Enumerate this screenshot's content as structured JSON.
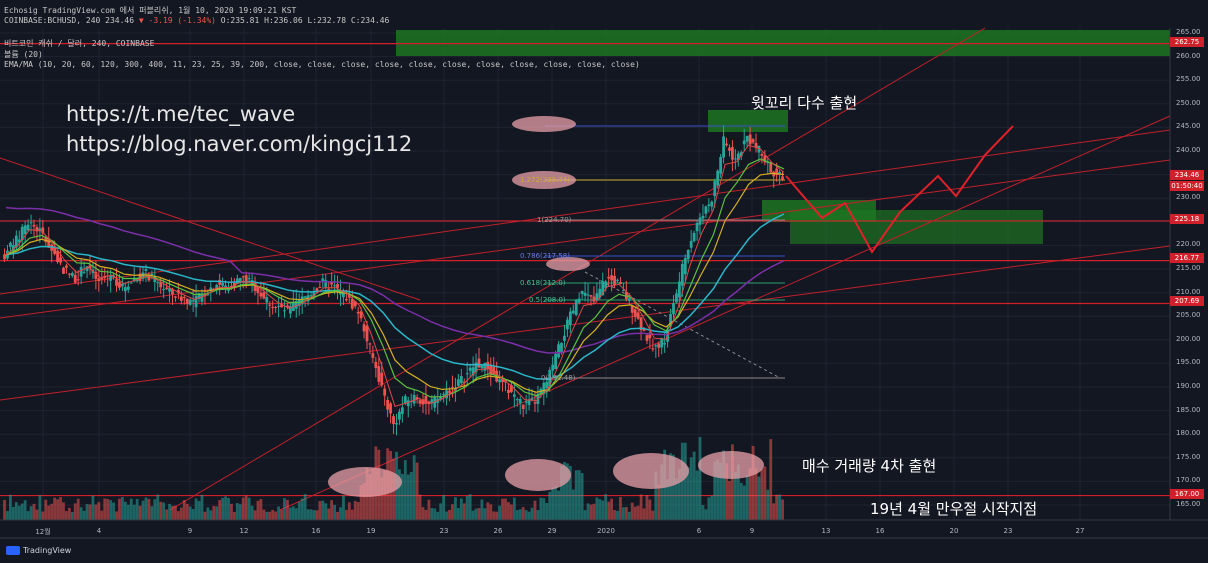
{
  "header": {
    "line1": "Echosig TradingView.com 에서 퍼블리쉬, 1월 10, 2020 19:09:21 KST",
    "symbol": "COINBASE:BCHUSD, 240",
    "last": "234.46",
    "change": "▼ -3.19 (-1.34%)",
    "ohlc": "O:235.81 H:236.06 L:232.78 C:234.46",
    "line2": "비트코인 캐쉬 / 달러, 240, COINBASE",
    "line3": "볼륨 (20)",
    "line4": "EMA/MA (10, 20, 60, 120, 300, 400, 11, 23, 25, 39, 200, close, close, close, close, close, close, close, close, close, close, close)"
  },
  "watermark": {
    "telegram": "https://t.me/tec_wave",
    "blog": "https://blog.naver.com/kingcj112"
  },
  "annotations": {
    "wick": "윗꼬리 다수 출현",
    "volume": "매수 거래량 4차 출현",
    "start": "19년 4월 만우절 시작지점"
  },
  "fib_labels": {
    "f1272": "1.272(233.74)",
    "f1": "1(224.70)",
    "f786": "0.786(217.58)",
    "f618": "0.618(212.0)",
    "f5": "0.5(208.0)",
    "f0": "0(191.48)"
  },
  "price_tags": {
    "p26275": "262.75",
    "p23446": "234.46",
    "time": "01:50:40",
    "p22518": "225.18",
    "p21677": "216.77",
    "p20769": "207.69",
    "p16700": "167.00"
  },
  "colors": {
    "background": "#131722",
    "up": "#26a69a",
    "down": "#ef5350",
    "level": "#d0202a",
    "zone": "#1e7a22"
  },
  "branding": {
    "name": "TradingView"
  },
  "chart_data": {
    "type": "candlestick",
    "symbol": "COINBASE:BCHUSD",
    "timeframe": "240",
    "y_ticks": [
      265,
      260,
      255,
      250,
      245,
      240,
      235,
      230,
      225,
      220,
      215,
      210,
      205,
      200,
      195,
      190,
      185,
      180,
      175,
      170,
      165
    ],
    "ylim": [
      163,
      266
    ],
    "x_ticks": [
      "12월",
      "4",
      "9",
      "12",
      "16",
      "19",
      "23",
      "26",
      "29",
      "2020",
      "6",
      "9",
      "13",
      "16",
      "20",
      "23",
      "27"
    ],
    "horizontal_levels": [
      262.75,
      225.18,
      216.77,
      207.69,
      167.0
    ],
    "fib_levels": [
      {
        "ratio": 1.272,
        "value": 233.74
      },
      {
        "ratio": 1,
        "value": 224.7
      },
      {
        "ratio": 0.786,
        "value": 217.58
      },
      {
        "ratio": 0.618,
        "value": 212.0
      },
      {
        "ratio": 0.5,
        "value": 208.0
      },
      {
        "ratio": 0,
        "value": 191.48
      }
    ],
    "close_series": [
      218,
      221,
      225,
      223,
      219,
      215,
      213,
      216,
      212,
      214,
      211,
      213,
      214,
      212,
      210,
      209,
      208,
      210,
      212,
      211,
      213,
      212,
      209,
      207,
      206,
      208,
      210,
      212,
      211,
      209,
      206,
      198,
      190,
      182,
      187,
      188,
      186,
      188,
      190,
      192,
      195,
      194,
      191,
      189,
      186,
      187,
      191,
      198,
      205,
      210,
      208,
      213,
      212,
      208,
      203,
      198,
      200,
      210,
      220,
      226,
      230,
      242,
      238,
      243,
      240,
      236,
      234.46
    ]
  }
}
